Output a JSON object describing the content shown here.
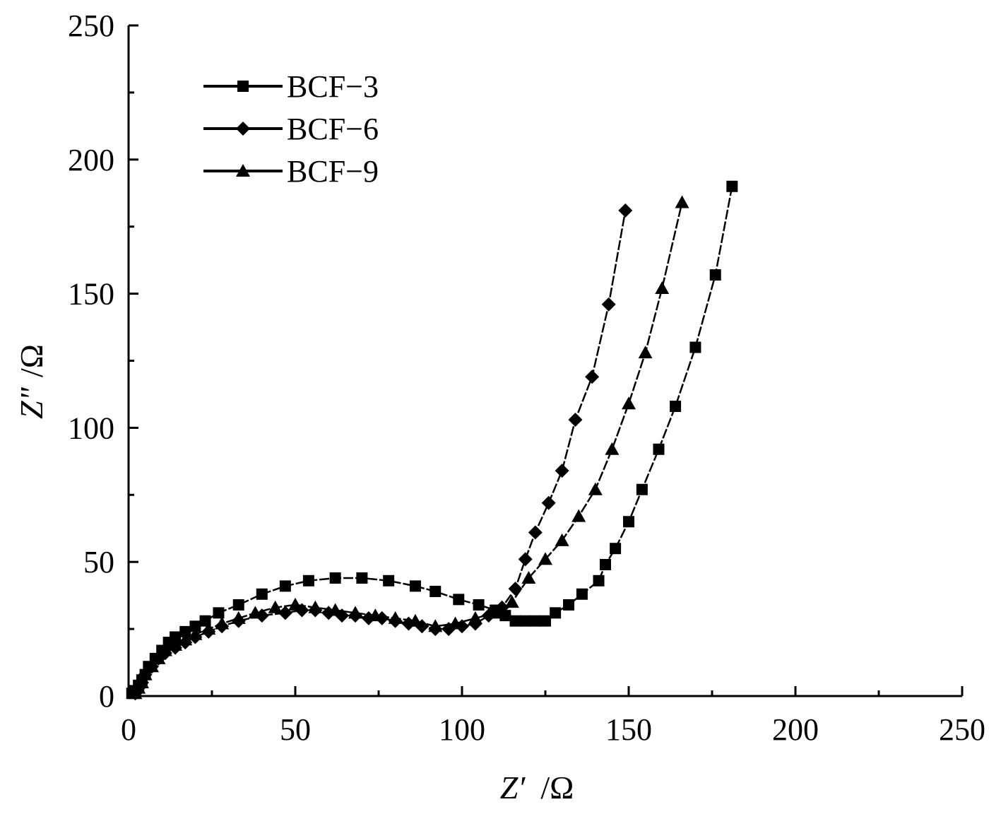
{
  "chart_data": {
    "type": "scatter",
    "xlabel": {
      "var": "Z′",
      "unit": "/Ω"
    },
    "ylabel": {
      "var": "Z\"",
      "unit": "/Ω"
    },
    "xlim": [
      0,
      250
    ],
    "ylim": [
      0,
      250
    ],
    "xticks": [
      0,
      50,
      100,
      150,
      200,
      250
    ],
    "yticks": [
      0,
      50,
      100,
      150,
      200,
      250
    ],
    "grid": false,
    "legend_position": "top-left",
    "series": [
      {
        "name": "BCF−3",
        "marker": "square",
        "x": [
          1,
          2,
          3,
          4,
          5,
          6,
          8,
          10,
          12,
          14,
          17,
          20,
          23,
          27,
          33,
          40,
          47,
          54,
          62,
          70,
          78,
          86,
          92,
          99,
          105,
          110,
          113,
          116,
          119,
          122,
          125,
          128,
          132,
          136,
          141,
          143,
          146,
          150,
          154,
          159,
          164,
          170,
          176,
          181
        ],
        "y": [
          1,
          2,
          4,
          6,
          8,
          11,
          14,
          17,
          20,
          22,
          24,
          26,
          28,
          31,
          34,
          38,
          41,
          43,
          44,
          44,
          43,
          41,
          39,
          36,
          34,
          32,
          30,
          28,
          28,
          28,
          28,
          31,
          34,
          38,
          43,
          49,
          55,
          65,
          77,
          92,
          108,
          130,
          157,
          190
        ]
      },
      {
        "name": "BCF−6",
        "marker": "diamond",
        "x": [
          2,
          3,
          4,
          5,
          7,
          9,
          11,
          14,
          17,
          20,
          24,
          28,
          33,
          40,
          47,
          52,
          56,
          60,
          64,
          68,
          72,
          76,
          80,
          84,
          88,
          92,
          96,
          100,
          104,
          108,
          112,
          116,
          119,
          122,
          126,
          130,
          134,
          139,
          144,
          149
        ],
        "y": [
          1,
          3,
          5,
          8,
          11,
          14,
          16,
          18,
          20,
          22,
          24,
          26,
          28,
          30,
          31,
          32,
          32,
          31,
          30,
          30,
          29,
          29,
          28,
          27,
          26,
          25,
          25,
          26,
          27,
          30,
          33,
          40,
          51,
          61,
          72,
          84,
          103,
          119,
          146,
          181
        ]
      },
      {
        "name": "BCF−9",
        "marker": "triangle",
        "x": [
          2,
          3,
          4,
          5,
          7,
          9,
          11,
          14,
          17,
          20,
          24,
          28,
          33,
          38,
          44,
          50,
          56,
          62,
          68,
          74,
          80,
          86,
          92,
          98,
          104,
          110,
          115,
          120,
          125,
          130,
          135,
          140,
          145,
          150,
          155,
          160,
          166
        ],
        "y": [
          1,
          3,
          5,
          8,
          11,
          14,
          17,
          19,
          21,
          23,
          25,
          27,
          29,
          31,
          33,
          34,
          33,
          32,
          31,
          30,
          29,
          28,
          26,
          27,
          29,
          31,
          35,
          44,
          51,
          58,
          67,
          77,
          92,
          109,
          128,
          152,
          184
        ]
      }
    ]
  }
}
